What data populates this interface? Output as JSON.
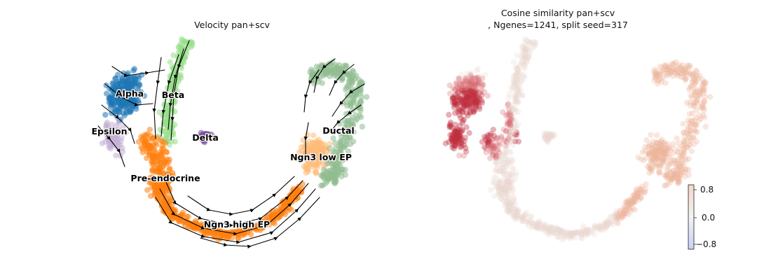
{
  "colors": {
    "Alpha": "#1f77b4",
    "Beta": "#98df8a",
    "Delta": "#7b4f9d",
    "Epsilon": "#c5b0d5",
    "Pre-endocrine": "#ff7f0e",
    "Ngn3 high EP": "#ff7f0e",
    "Ngn3 low EP": "#ffbb78",
    "Ductal": "#8fbc8f",
    "stream": "#000000",
    "cos_neg": "#3b4cc0",
    "cos_mid": "#dddcdc",
    "cos_pos": "#b40426"
  },
  "chart_data": [
    {
      "type": "scatter",
      "title": "Velocity pan+scv",
      "clusters": [
        "Alpha",
        "Beta",
        "Epsilon",
        "Delta",
        "Ductal",
        "Ngn3 low EP",
        "Pre-endocrine",
        "Ngn3 high EP"
      ],
      "overlay": "velocity-streamlines",
      "axes": "off"
    },
    {
      "type": "scatter",
      "title_line1": "Cosine similarity pan+scv",
      "title_line2": ", Ngenes=1241, split seed=317",
      "colorbar": {
        "ticks": [
          "0.8",
          "0.0",
          "−0.8"
        ],
        "range": [
          -1,
          1
        ],
        "cmap": "coolwarm"
      },
      "axes": "off"
    }
  ]
}
